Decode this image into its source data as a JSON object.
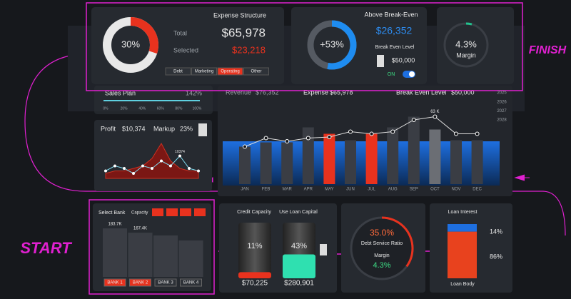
{
  "expense_structure": {
    "title": "Expense Structure",
    "share": {
      "value": 30,
      "label": "30%"
    },
    "total_label": "Total",
    "total": "$65,978",
    "selected_label": "Selected",
    "selected": "$23,218",
    "tabs": [
      "Debt",
      "Marketing",
      "Operating",
      "Other"
    ],
    "active_tab": 2
  },
  "break_even": {
    "title": "Above Break-Even",
    "gauge": {
      "value": 53,
      "label": "+53%"
    },
    "amount": "$26,352",
    "level_label": "Break Even Level",
    "level": "$50,000",
    "toggle": "ON"
  },
  "margin_card": {
    "gauge": {
      "value": 4.3,
      "label": "4.3%"
    },
    "label": "Margin"
  },
  "finish": "FINISH",
  "start": "START",
  "sales_plan": {
    "title": "Sales Plan",
    "value": {
      "value": 142,
      "label": "142%"
    },
    "ticks": [
      "0%",
      "20%",
      "40%",
      "60%",
      "80%",
      "100%"
    ]
  },
  "summary": {
    "revenue_label": "Revenue",
    "revenue": "$76,352",
    "expense_label": "Expense",
    "expense": "$65,978",
    "level_label": "Break Even Level",
    "level": "$50,000",
    "years": [
      "2025",
      "2026",
      "2027",
      "2028"
    ]
  },
  "profit": {
    "profit_label": "Profit",
    "profit": "$10,374",
    "markup_label": "Markup",
    "markup": "23%",
    "chart": {
      "line": [
        3,
        5,
        4,
        2,
        5,
        4,
        7,
        5,
        9,
        4,
        3
      ],
      "area": [
        2,
        3,
        3,
        4,
        5,
        8,
        14,
        7,
        4,
        3,
        3
      ],
      "point_label": "10374"
    }
  },
  "monthly_chart": {
    "categories": [
      "JAN",
      "FEB",
      "MAR",
      "APR",
      "MAY",
      "JUN",
      "JUL",
      "AUG",
      "SEP",
      "OCT",
      "NOV",
      "DEC"
    ],
    "bars": [
      35,
      39,
      39,
      53,
      47,
      41,
      47,
      53,
      63,
      51,
      41,
      41
    ],
    "bar_colors": [
      "#3a3d44",
      "#3a3d44",
      "#3a3d44",
      "#3a3d44",
      "#e8321e",
      "#3a3d44",
      "#e8321e",
      "#3a3d44",
      "#3a3d44",
      "#6b6e74",
      "#3a3d44",
      "#3a3d44"
    ],
    "line": [
      35,
      43,
      40,
      43,
      44,
      49,
      47,
      49,
      60,
      63,
      47,
      47
    ],
    "line_label": "63 K"
  },
  "banks": {
    "title": "Select Bank",
    "capacity_label": "Capacity",
    "categories": [
      "BANK 1",
      "BANK 2",
      "BANK 3",
      "BANK 4"
    ],
    "values": [
      183.7,
      167.4,
      157,
      138
    ],
    "value_labels": [
      "183.7K",
      "167.4K",
      null,
      null
    ],
    "selected": [
      0,
      1
    ]
  },
  "credit": {
    "capacity_title": "Credit Capacity",
    "capital_title": "Use Loan Capital",
    "capacity_fill": {
      "value": 11,
      "label": "11%"
    },
    "capital_fill": {
      "value": 43,
      "label": "43%"
    },
    "capacity_amount": "$70,225",
    "capital_amount": "$280,901"
  },
  "debt_service": {
    "ratio": {
      "value": 35,
      "label": "35.0%"
    },
    "ratio_label": "Debt Service Ratio",
    "margin_label": "Margin",
    "margin": "4.3%"
  },
  "loan": {
    "title": "Loan Interest",
    "interest": {
      "value": 14,
      "label": "14%"
    },
    "body": {
      "value": 86,
      "label": "86%"
    },
    "body_label": "Loan Body"
  }
}
